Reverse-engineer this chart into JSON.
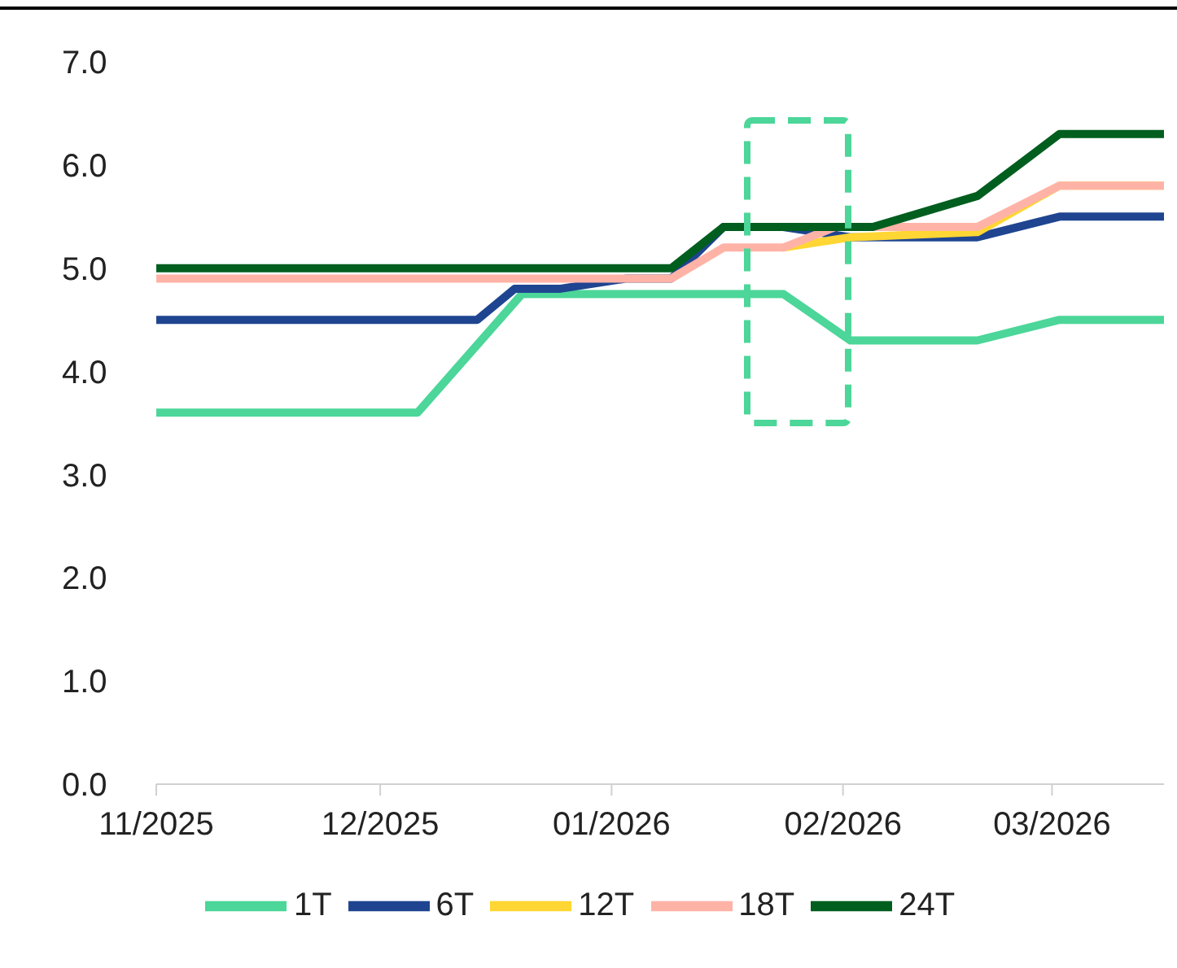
{
  "chart_data": {
    "type": "line",
    "xlim": [
      "2025-11-01",
      "2026-03-16"
    ],
    "xticks": [
      {
        "value": "2025-11-01",
        "label": "11/2025"
      },
      {
        "value": "2025-12-01",
        "label": "12/2025"
      },
      {
        "value": "2026-01-01",
        "label": "01/2026"
      },
      {
        "value": "2026-02-01",
        "label": "02/2026"
      },
      {
        "value": "2026-03-01",
        "label": "03/2026"
      }
    ],
    "ylim": [
      0,
      7
    ],
    "yticks": [
      {
        "value": 0,
        "label": "0.0"
      },
      {
        "value": 1,
        "label": "1.0"
      },
      {
        "value": 2,
        "label": "2.0"
      },
      {
        "value": 3,
        "label": "3.0"
      },
      {
        "value": 4,
        "label": "4.0"
      },
      {
        "value": 5,
        "label": "5.0"
      },
      {
        "value": 6,
        "label": "6.0"
      },
      {
        "value": 7,
        "label": "7.0"
      }
    ],
    "grid": false,
    "legend": "bottom",
    "marker": "none",
    "line_style": "solid",
    "series": [
      {
        "name": "1T",
        "color": "#4cd699",
        "x": [
          "2025-11-01",
          "2025-12-06",
          "2025-12-20",
          "2026-01-24",
          "2026-02-02",
          "2026-02-19",
          "2026-03-02",
          "2026-03-16"
        ],
        "values": [
          3.6,
          3.6,
          4.75,
          4.75,
          4.3,
          4.3,
          4.5,
          4.5
        ]
      },
      {
        "name": "6T",
        "color": "#1f4591",
        "x": [
          "2025-11-01",
          "2025-12-14",
          "2025-12-19",
          "2025-12-25",
          "2026-01-03",
          "2026-01-09",
          "2026-01-16",
          "2026-01-24",
          "2026-02-02",
          "2026-02-19",
          "2026-03-02",
          "2026-03-16"
        ],
        "values": [
          4.5,
          4.5,
          4.8,
          4.8,
          4.9,
          4.9,
          5.4,
          5.4,
          5.3,
          5.3,
          5.5,
          5.5
        ]
      },
      {
        "name": "12T",
        "color": "#ffd633",
        "x": [
          "2026-01-24",
          "2026-02-02",
          "2026-02-19",
          "2026-03-02",
          "2026-03-16"
        ],
        "values": [
          5.2,
          5.3,
          5.35,
          5.8,
          5.8
        ]
      },
      {
        "name": "18T",
        "color": "#ffb3a7",
        "x": [
          "2025-11-01",
          "2026-01-09",
          "2026-01-16",
          "2026-01-24",
          "2026-01-31",
          "2026-02-19",
          "2026-03-02",
          "2026-03-16"
        ],
        "values": [
          4.9,
          4.9,
          5.2,
          5.2,
          5.4,
          5.4,
          5.8,
          5.8
        ]
      },
      {
        "name": "24T",
        "color": "#005e1e",
        "x": [
          "2025-11-01",
          "2026-01-09",
          "2026-01-16",
          "2026-02-05",
          "2026-02-19",
          "2026-03-02",
          "2026-03-16"
        ],
        "values": [
          5.0,
          5.0,
          5.4,
          5.4,
          5.7,
          6.3,
          6.3
        ]
      }
    ]
  }
}
